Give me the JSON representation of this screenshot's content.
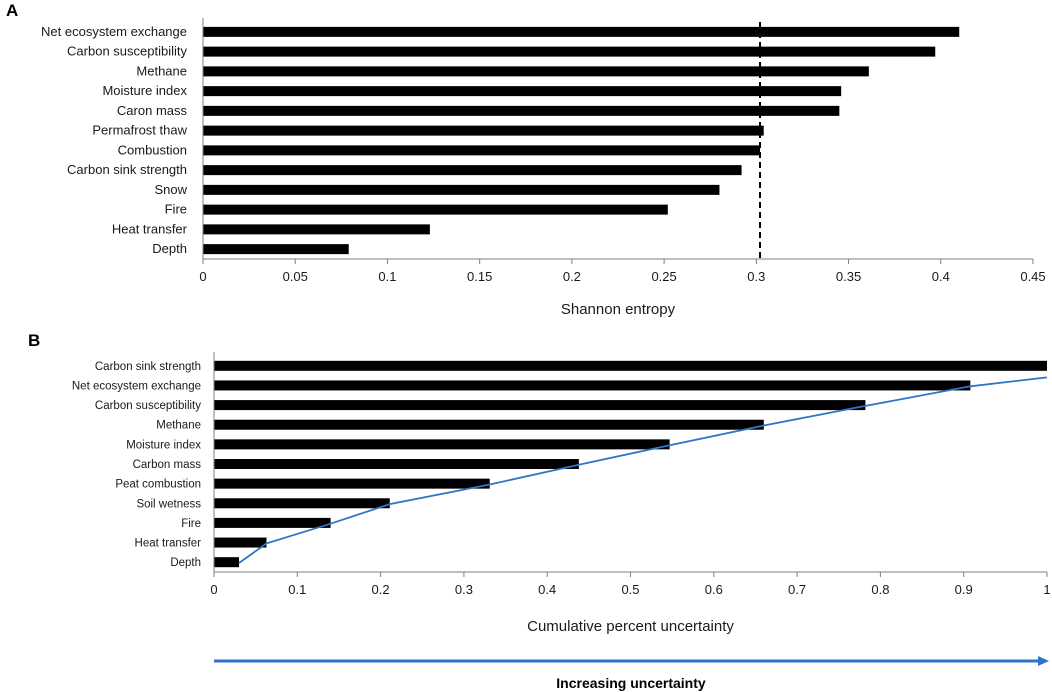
{
  "chart_data": [
    {
      "panel": "A",
      "type": "bar",
      "orientation": "horizontal",
      "categories": [
        "Net ecosystem exchange",
        "Carbon susceptibility",
        "Methane",
        "Moisture index",
        "Caron mass",
        "Permafrost thaw",
        "Combustion",
        "Carbon sink strength",
        "Snow",
        "Fire",
        "Heat transfer",
        "Depth"
      ],
      "values": [
        0.41,
        0.397,
        0.361,
        0.346,
        0.345,
        0.304,
        0.302,
        0.292,
        0.28,
        0.252,
        0.123,
        0.079
      ],
      "xlabel": "Shannon entropy",
      "xlim": [
        0,
        0.45
      ],
      "xticks": [
        "0",
        "0.05",
        "0.1",
        "0.15",
        "0.2",
        "0.25",
        "0.3",
        "0.35",
        "0.4",
        "0.45"
      ],
      "reference_line": {
        "x": 0.302,
        "style": "dashed"
      },
      "color": "#000000"
    },
    {
      "panel": "B",
      "type": "bar",
      "orientation": "horizontal",
      "categories": [
        "Carbon sink strength",
        "Net ecosystem exchange",
        "Carbon susceptibility",
        "Methane",
        "Moisture index",
        "Carbon mass",
        "Peat combustion",
        "Soil wetness",
        "Fire",
        "Heat transfer",
        "Depth"
      ],
      "values": [
        1.0,
        0.908,
        0.782,
        0.66,
        0.547,
        0.438,
        0.331,
        0.211,
        0.14,
        0.063,
        0.03
      ],
      "xlabel": "Cumulative percent uncertainty",
      "xlim": [
        0,
        1
      ],
      "xticks": [
        "0",
        "0.1",
        "0.2",
        "0.3",
        "0.4",
        "0.5",
        "0.6",
        "0.7",
        "0.8",
        "0.9",
        "1"
      ],
      "cumulative_curve": {
        "color": "#2e75c4",
        "points": [
          [
            0.03,
            0.0
          ],
          [
            0.063,
            1.0
          ],
          [
            0.14,
            2.0
          ],
          [
            0.211,
            3.0
          ],
          [
            0.331,
            4.0
          ],
          [
            0.438,
            5.0
          ],
          [
            0.547,
            6.0
          ],
          [
            0.66,
            7.0
          ],
          [
            0.782,
            8.0
          ],
          [
            0.908,
            9.0
          ],
          [
            1.0,
            9.45
          ]
        ]
      },
      "color": "#000000"
    }
  ],
  "arrow": {
    "label": "Increasing uncertainty",
    "color": "#2e75c4"
  }
}
